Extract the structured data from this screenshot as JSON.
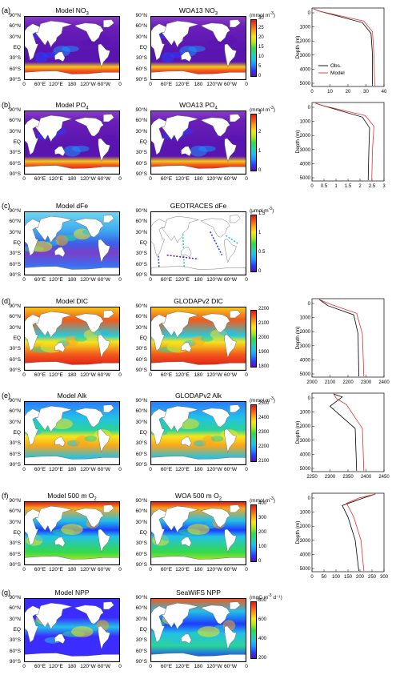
{
  "panels": [
    {
      "id": "a",
      "tag": "(a)",
      "model_title": "Model NO",
      "model_sub": "3",
      "obs_title": "WOA13 NO",
      "obs_sub": "3",
      "unit": "(mmol m",
      "unit_sup": "-3",
      "unit_end": ")",
      "cb_ticks": [
        "30",
        "25",
        "20",
        "15",
        "10",
        "5",
        "0"
      ],
      "profile": {
        "xticks": [
          "0",
          "10",
          "20",
          "30",
          "40"
        ],
        "xmin": 0,
        "xmax": 40,
        "legend": [
          {
            "label": "Obs.",
            "color": "#000000"
          },
          {
            "label": "Model",
            "color": "#e8302a"
          }
        ]
      },
      "cmap": "rainbow"
    },
    {
      "id": "b",
      "tag": "(b)",
      "model_title": "Model PO",
      "model_sub": "4",
      "obs_title": "WOA13 PO",
      "obs_sub": "4",
      "unit": "(mmol m",
      "unit_sup": "-3",
      "unit_end": ")",
      "cb_ticks": [
        "3",
        "2",
        "1",
        "0"
      ],
      "profile": {
        "xticks": [
          "0",
          "0.5",
          "1",
          "1.5",
          "2",
          "2.5",
          "3"
        ],
        "xmin": 0,
        "xmax": 3
      },
      "cmap": "rainbow"
    },
    {
      "id": "c",
      "tag": "(c)",
      "model_title": "Model dFe",
      "model_sub": "",
      "obs_title": "GEOTRACES dFe",
      "obs_sub": "",
      "unit": "(μmol m",
      "unit_sup": "-3",
      "unit_end": ")",
      "cb_ticks": [
        "1.5",
        "1",
        "0.5",
        "0"
      ],
      "profile": null,
      "cmap": "rainbow"
    },
    {
      "id": "d",
      "tag": "(d)",
      "model_title": "Model DIC",
      "model_sub": "",
      "obs_title": "GLODAPv2 DIC",
      "obs_sub": "",
      "unit": "",
      "unit_sup": "",
      "unit_end": "",
      "cb_ticks": [
        "2200",
        "2100",
        "2000",
        "1900",
        "1800"
      ],
      "profile": {
        "xticks": [
          "2000",
          "2100",
          "2200",
          "2300",
          "2400"
        ],
        "xmin": 2000,
        "xmax": 2400
      },
      "cmap": "rainbow"
    },
    {
      "id": "e",
      "tag": "(e)",
      "model_title": "Model Alk",
      "model_sub": "",
      "obs_title": "GLODAPv2 Alk",
      "obs_sub": "",
      "unit": "(mmol m",
      "unit_sup": "-3",
      "unit_end": ")",
      "cb_ticks": [
        "2500",
        "2400",
        "2300",
        "2200",
        "2100"
      ],
      "profile": {
        "xticks": [
          "2250",
          "2300",
          "2350",
          "2400",
          "2450"
        ],
        "xmin": 2250,
        "xmax": 2450
      },
      "cmap": "rainbow"
    },
    {
      "id": "f",
      "tag": "(f)",
      "model_title": "Model 500 m O",
      "model_sub": "2",
      "obs_title": "WOA 500 m O",
      "obs_sub": "2",
      "unit": "(mmol m",
      "unit_sup": "-3",
      "unit_end": ")",
      "cb_ticks": [
        "400",
        "300",
        "200",
        "100",
        "0"
      ],
      "profile": {
        "xticks": [
          "0",
          "50",
          "100",
          "150",
          "200",
          "250",
          "300"
        ],
        "xmin": 0,
        "xmax": 300
      },
      "cmap": "rainbow"
    },
    {
      "id": "g",
      "tag": "(g)",
      "model_title": "Model NPP",
      "model_sub": "",
      "obs_title": "SeaWiFS NPP",
      "obs_sub": "",
      "unit": "(mgC m",
      "unit_sup": "-3",
      "unit_end": " d⁻¹)",
      "cb_ticks": [
        "800",
        "600",
        "400",
        "200"
      ],
      "profile": null,
      "cmap": "rainbow"
    }
  ],
  "axes": {
    "lat_labels": [
      "90°N",
      "60°N",
      "30°N",
      "EQ",
      "30°S",
      "60°S",
      "90°S"
    ],
    "lon_labels": [
      "0",
      "60°E",
      "120°E",
      "180",
      "120°W",
      "60°W",
      "0"
    ],
    "depth_label": "Depth (m)",
    "depth_ticks": [
      "0",
      "1000",
      "2000",
      "3000",
      "4000",
      "5000"
    ]
  }
}
